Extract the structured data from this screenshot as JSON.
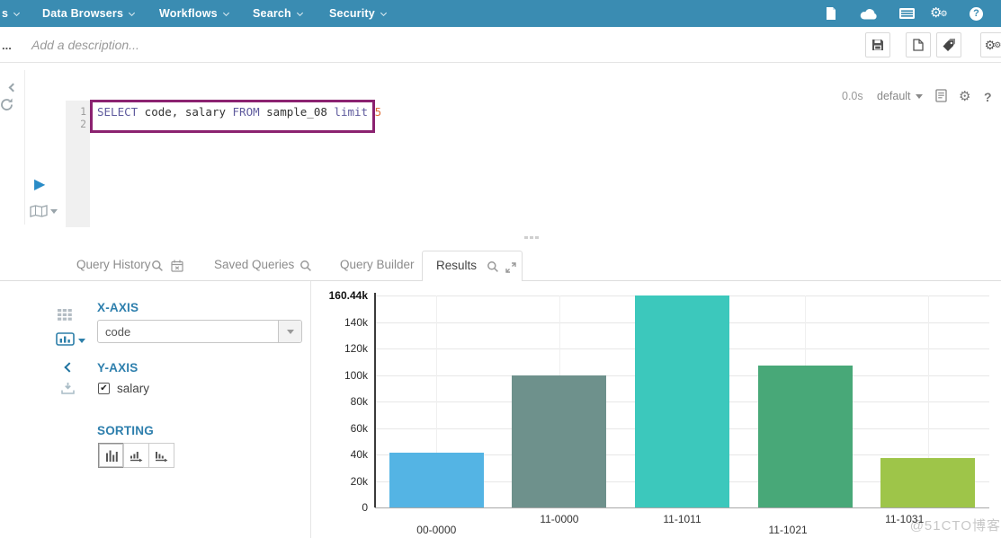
{
  "colors": {
    "nav_bg": "#3a8cb2",
    "accent_blue": "#2e7fad",
    "query_highlight_border": "#8b2270",
    "keyword_color": "#5e5a9d",
    "number_color": "#e0703a"
  },
  "nav": {
    "items": [
      {
        "label": "s"
      },
      {
        "label": "Data Browsers"
      },
      {
        "label": "Workflows"
      },
      {
        "label": "Search"
      },
      {
        "label": "Security"
      }
    ],
    "right_icons": [
      "file-icon",
      "cloud-icon",
      "list-icon",
      "gears-icon",
      "help-icon"
    ]
  },
  "toolbar": {
    "truncated_label": "...",
    "description_placeholder": "Add a description...",
    "buttons": [
      "save",
      "new-document",
      "tags",
      "settings"
    ]
  },
  "editor": {
    "line_numbers": [
      "1",
      "2"
    ],
    "query_tokens": [
      {
        "text": "SELECT",
        "type": "keyword"
      },
      {
        "text": " code, salary ",
        "type": "plain"
      },
      {
        "text": "FROM",
        "type": "keyword"
      },
      {
        "text": " sample_08 ",
        "type": "plain"
      },
      {
        "text": "limit",
        "type": "keyword"
      },
      {
        "text": " ",
        "type": "plain"
      },
      {
        "text": "5",
        "type": "number"
      }
    ],
    "duration": "0.0s",
    "database": "default"
  },
  "tabs": [
    {
      "label": "Query History"
    },
    {
      "label": "Saved Queries"
    },
    {
      "label": "Query Builder"
    },
    {
      "label": "Results"
    }
  ],
  "chart_panel": {
    "x_axis_heading": "X-AXIS",
    "x_axis_selected": "code",
    "y_axis_heading": "Y-AXIS",
    "y_axis_field": "salary",
    "y_axis_checked": true,
    "sorting_heading": "SORTING",
    "sort_options": [
      "none",
      "ascending",
      "descending"
    ],
    "sort_selected": "none"
  },
  "chart_data": {
    "type": "bar",
    "title": "",
    "xlabel": "",
    "ylabel": "",
    "categories": [
      "00-0000",
      "11-0000",
      "11-1011",
      "11-1021",
      "11-1031"
    ],
    "values": [
      41300,
      100000,
      160440,
      107500,
      37400
    ],
    "series_colors": [
      "#54b4e4",
      "#6e918c",
      "#3cc8bc",
      "#48a878",
      "#9ec549"
    ],
    "ylim": [
      0,
      160440
    ],
    "y_ticks": [
      {
        "label": "160.44k",
        "value": 160440
      },
      {
        "label": "140k",
        "value": 140000
      },
      {
        "label": "120k",
        "value": 120000
      },
      {
        "label": "100k",
        "value": 100000
      },
      {
        "label": "80k",
        "value": 80000
      },
      {
        "label": "60k",
        "value": 60000
      },
      {
        "label": "40k",
        "value": 40000
      },
      {
        "label": "20k",
        "value": 20000
      },
      {
        "label": "0",
        "value": 0
      }
    ],
    "grid": true,
    "legend": "none"
  },
  "watermark": "@51CTO博客"
}
